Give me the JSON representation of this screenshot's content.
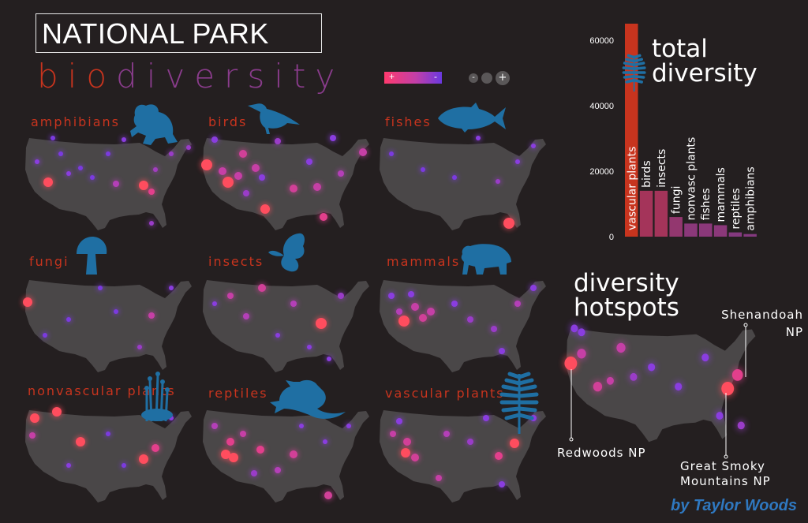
{
  "header": {
    "title": "NATIONAL PARK",
    "subtitle_a": "bio",
    "subtitle_b": "diversity"
  },
  "legend": {
    "color_plus": "+",
    "color_minus": "-",
    "size_minus": "-",
    "size_plus": "+",
    "color_high": "#ff3a6e",
    "color_low": "#6a39e0"
  },
  "maps": [
    {
      "label": "amphibians",
      "icon": "frog-icon"
    },
    {
      "label": "birds",
      "icon": "bird-icon"
    },
    {
      "label": "fishes",
      "icon": "fish-icon"
    },
    {
      "label": "fungi",
      "icon": "mushroom-icon"
    },
    {
      "label": "insects",
      "icon": "butterfly-icon"
    },
    {
      "label": "mammals",
      "icon": "bear-icon"
    },
    {
      "label": "nonvascular plants",
      "icon": "moss-icon"
    },
    {
      "label": "reptiles",
      "icon": "lizard-icon"
    },
    {
      "label": "vascular plants",
      "icon": "fern-icon"
    }
  ],
  "chart_data": {
    "type": "bar",
    "title": "total diversity",
    "categories": [
      "vascular plants",
      "birds",
      "insects",
      "fungi",
      "nonvasc plants",
      "fishes",
      "mammals",
      "reptiles",
      "amphibians"
    ],
    "values": [
      65000,
      14000,
      14000,
      6000,
      4000,
      4000,
      3500,
      1300,
      800
    ],
    "yticks": [
      0,
      20000,
      40000,
      60000
    ],
    "ylim": [
      0,
      65000
    ],
    "colors": [
      "#c8341e",
      "#a4345a",
      "#a4345a",
      "#93376f",
      "#8b387a",
      "#8b387a",
      "#8b387a",
      "#84397f",
      "#84397f"
    ],
    "icon": "fern-icon"
  },
  "hotspots": {
    "title_line1": "diversity",
    "title_line2": "hotspots",
    "callouts": [
      {
        "line1": "Shenandoah",
        "line2": "NP"
      },
      {
        "line1": "Redwoods NP",
        "line2": ""
      },
      {
        "line1": "Great Smoky",
        "line2": "Mountains NP"
      }
    ]
  },
  "credit": "by Taylor Woods"
}
